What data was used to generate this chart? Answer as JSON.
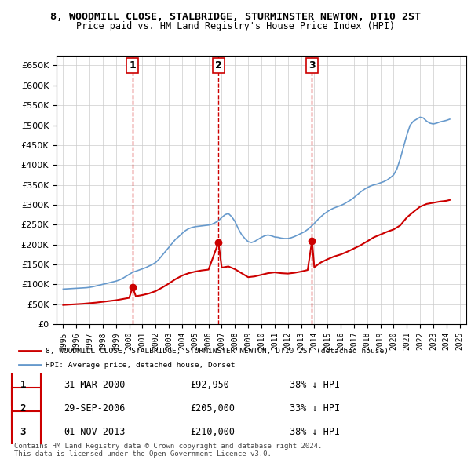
{
  "title": "8, WOODMILL CLOSE, STALBRIDGE, STURMINSTER NEWTON, DT10 2ST",
  "subtitle": "Price paid vs. HM Land Registry's House Price Index (HPI)",
  "ylabel": "",
  "ylim": [
    0,
    675000
  ],
  "yticks": [
    0,
    50000,
    100000,
    150000,
    200000,
    250000,
    300000,
    350000,
    400000,
    450000,
    500000,
    550000,
    600000,
    650000
  ],
  "background_color": "#ffffff",
  "grid_color": "#cccccc",
  "hpi_color": "#6699cc",
  "price_color": "#cc0000",
  "vline_color": "#cc0000",
  "transactions": [
    {
      "label": "1",
      "date_num": 2000.25,
      "price": 92950
    },
    {
      "label": "2",
      "date_num": 2006.75,
      "price": 205000
    },
    {
      "label": "3",
      "date_num": 2013.83,
      "price": 210000
    }
  ],
  "transaction_table": [
    {
      "num": "1",
      "date": "31-MAR-2000",
      "price": "£92,950",
      "pct": "38% ↓ HPI"
    },
    {
      "num": "2",
      "date": "29-SEP-2006",
      "price": "£205,000",
      "pct": "33% ↓ HPI"
    },
    {
      "num": "3",
      "date": "01-NOV-2013",
      "price": "£210,000",
      "pct": "38% ↓ HPI"
    }
  ],
  "legend_entries": [
    "8, WOODMILL CLOSE, STALBRIDGE, STURMINSTER NEWTON, DT10 2ST (detached house)",
    "HPI: Average price, detached house, Dorset"
  ],
  "footer": "Contains HM Land Registry data © Crown copyright and database right 2024.\nThis data is licensed under the Open Government Licence v3.0.",
  "hpi_data": {
    "years": [
      1995,
      1995.25,
      1995.5,
      1995.75,
      1996,
      1996.25,
      1996.5,
      1996.75,
      1997,
      1997.25,
      1997.5,
      1997.75,
      1998,
      1998.25,
      1998.5,
      1998.75,
      1999,
      1999.25,
      1999.5,
      1999.75,
      2000,
      2000.25,
      2000.5,
      2000.75,
      2001,
      2001.25,
      2001.5,
      2001.75,
      2002,
      2002.25,
      2002.5,
      2002.75,
      2003,
      2003.25,
      2003.5,
      2003.75,
      2004,
      2004.25,
      2004.5,
      2004.75,
      2005,
      2005.25,
      2005.5,
      2005.75,
      2006,
      2006.25,
      2006.5,
      2006.75,
      2007,
      2007.25,
      2007.5,
      2007.75,
      2008,
      2008.25,
      2008.5,
      2008.75,
      2009,
      2009.25,
      2009.5,
      2009.75,
      2010,
      2010.25,
      2010.5,
      2010.75,
      2011,
      2011.25,
      2011.5,
      2011.75,
      2012,
      2012.25,
      2012.5,
      2012.75,
      2013,
      2013.25,
      2013.5,
      2013.75,
      2014,
      2014.25,
      2014.5,
      2014.75,
      2015,
      2015.25,
      2015.5,
      2015.75,
      2016,
      2016.25,
      2016.5,
      2016.75,
      2017,
      2017.25,
      2017.5,
      2017.75,
      2018,
      2018.25,
      2018.5,
      2018.75,
      2019,
      2019.25,
      2019.5,
      2019.75,
      2020,
      2020.25,
      2020.5,
      2020.75,
      2021,
      2021.25,
      2021.5,
      2021.75,
      2022,
      2022.25,
      2022.5,
      2022.75,
      2023,
      2023.25,
      2023.5,
      2023.75,
      2024,
      2024.25
    ],
    "values": [
      88000,
      88500,
      89000,
      89500,
      90000,
      90500,
      91000,
      91500,
      92500,
      94000,
      96000,
      98000,
      100000,
      102000,
      104000,
      106000,
      108000,
      111000,
      115000,
      120000,
      125000,
      130000,
      133000,
      136000,
      139000,
      142000,
      146000,
      150000,
      155000,
      163000,
      173000,
      183000,
      193000,
      203000,
      213000,
      220000,
      228000,
      235000,
      240000,
      243000,
      245000,
      246000,
      247000,
      248000,
      249000,
      251000,
      255000,
      260000,
      268000,
      275000,
      278000,
      270000,
      258000,
      240000,
      225000,
      215000,
      207000,
      205000,
      208000,
      213000,
      218000,
      222000,
      224000,
      222000,
      219000,
      218000,
      216000,
      215000,
      215000,
      217000,
      220000,
      224000,
      228000,
      232000,
      238000,
      245000,
      253000,
      262000,
      270000,
      277000,
      283000,
      288000,
      292000,
      295000,
      298000,
      302000,
      307000,
      312000,
      318000,
      325000,
      332000,
      338000,
      343000,
      347000,
      350000,
      352000,
      355000,
      358000,
      362000,
      368000,
      375000,
      390000,
      415000,
      445000,
      475000,
      500000,
      510000,
      515000,
      520000,
      518000,
      510000,
      505000,
      503000,
      505000,
      508000,
      510000,
      512000,
      515000
    ]
  },
  "price_data": {
    "years": [
      1995,
      1995.5,
      1996,
      1996.5,
      1997,
      1997.5,
      1998,
      1998.5,
      1999,
      1999.5,
      2000,
      2000.25,
      2000.5,
      2001,
      2001.5,
      2002,
      2002.5,
      2003,
      2003.5,
      2004,
      2004.5,
      2005,
      2005.5,
      2006,
      2006.75,
      2007,
      2007.5,
      2008,
      2008.5,
      2009,
      2009.5,
      2010,
      2010.5,
      2011,
      2011.5,
      2012,
      2012.5,
      2013,
      2013.5,
      2013.83,
      2014,
      2014.5,
      2015,
      2015.5,
      2016,
      2016.5,
      2017,
      2017.5,
      2018,
      2018.5,
      2019,
      2019.5,
      2020,
      2020.5,
      2021,
      2021.5,
      2022,
      2022.5,
      2023,
      2023.5,
      2024,
      2024.25
    ],
    "values": [
      48000,
      49000,
      50000,
      51000,
      52500,
      54000,
      56000,
      58000,
      60000,
      63000,
      66000,
      92950,
      70000,
      73000,
      77000,
      83000,
      92000,
      102000,
      113000,
      122000,
      128000,
      132000,
      135000,
      137000,
      205000,
      142000,
      145000,
      138000,
      128000,
      118000,
      120000,
      124000,
      128000,
      130000,
      128000,
      127000,
      129000,
      132000,
      136000,
      210000,
      143000,
      155000,
      163000,
      170000,
      175000,
      182000,
      190000,
      198000,
      208000,
      218000,
      225000,
      232000,
      238000,
      248000,
      268000,
      282000,
      295000,
      302000,
      305000,
      308000,
      310000,
      312000
    ]
  }
}
